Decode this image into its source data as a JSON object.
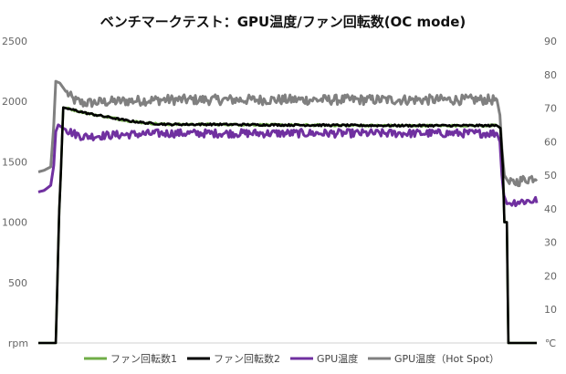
{
  "chart_data": {
    "type": "line",
    "title": "ベンチマークテスト：GPU温度/ファン回転数(OC mode)",
    "y_left": {
      "unit_label": "rpm",
      "range": [
        0,
        2500
      ],
      "ticks": [
        "2500",
        "2000",
        "1500",
        "1000",
        "500"
      ]
    },
    "y_right": {
      "unit_label": "℃",
      "range": [
        0,
        90
      ],
      "ticks": [
        "90",
        "80",
        "70",
        "60",
        "50",
        "40",
        "30",
        "20",
        "10"
      ]
    },
    "x_range": [
      0,
      100
    ],
    "grid": false,
    "legend_position": "bottom",
    "series": [
      {
        "name": "ファン回転数1",
        "axis": "left",
        "color": "#70ad47",
        "points": [
          [
            0,
            0
          ],
          [
            3.5,
            0
          ],
          [
            4.2,
            1100
          ],
          [
            4.6,
            1500
          ],
          [
            5,
            1950
          ],
          [
            7,
            1930
          ],
          [
            10,
            1900
          ],
          [
            14,
            1870
          ],
          [
            18,
            1840
          ],
          [
            22,
            1820
          ],
          [
            26,
            1810
          ],
          [
            35,
            1810
          ],
          [
            50,
            1805
          ],
          [
            70,
            1800
          ],
          [
            92,
            1800
          ],
          [
            92.7,
            1780
          ],
          [
            93.2,
            1450
          ],
          [
            93.5,
            1000
          ],
          [
            94,
            1000
          ],
          [
            94.3,
            0
          ],
          [
            100,
            0
          ]
        ]
      },
      {
        "name": "ファン回転数2",
        "axis": "left",
        "color": "#000000",
        "points": [
          [
            0,
            0
          ],
          [
            3.5,
            0
          ],
          [
            4.2,
            1100
          ],
          [
            4.6,
            1500
          ],
          [
            5,
            1950
          ],
          [
            7,
            1930
          ],
          [
            10,
            1900
          ],
          [
            14,
            1870
          ],
          [
            18,
            1840
          ],
          [
            22,
            1820
          ],
          [
            26,
            1810
          ],
          [
            35,
            1810
          ],
          [
            50,
            1805
          ],
          [
            70,
            1800
          ],
          [
            92,
            1800
          ],
          [
            92.7,
            1780
          ],
          [
            93.2,
            1450
          ],
          [
            93.5,
            1000
          ],
          [
            94,
            1000
          ],
          [
            94.3,
            0
          ],
          [
            100,
            0
          ]
        ]
      },
      {
        "name": "GPU温度",
        "axis": "right",
        "color": "#7030a0",
        "points": [
          [
            0,
            45
          ],
          [
            1.2,
            45.5
          ],
          [
            2.5,
            47
          ],
          [
            3.1,
            53
          ],
          [
            3.5,
            63
          ],
          [
            4,
            65
          ],
          [
            5,
            64
          ],
          [
            7,
            62.5
          ],
          [
            9,
            61.5
          ],
          [
            15,
            62
          ],
          [
            25,
            62.5
          ],
          [
            40,
            62.5
          ],
          [
            60,
            62.5
          ],
          [
            80,
            62.5
          ],
          [
            92,
            62.5
          ],
          [
            92.6,
            60
          ],
          [
            93,
            50
          ],
          [
            93.4,
            44
          ],
          [
            94,
            41.5
          ],
          [
            95.5,
            42
          ],
          [
            97,
            42.2
          ],
          [
            100,
            42.5
          ]
        ]
      },
      {
        "name": "GPU温度（Hot Spot）",
        "axis": "right",
        "color": "#808080",
        "points": [
          [
            0,
            51
          ],
          [
            1.2,
            51.5
          ],
          [
            2.5,
            52.5
          ],
          [
            3.1,
            65
          ],
          [
            3.5,
            78
          ],
          [
            4.3,
            77.5
          ],
          [
            5.5,
            75
          ],
          [
            7,
            72.5
          ],
          [
            9,
            71.5
          ],
          [
            15,
            72
          ],
          [
            25,
            72.5
          ],
          [
            40,
            72.5
          ],
          [
            60,
            72.5
          ],
          [
            80,
            72.5
          ],
          [
            92,
            72.5
          ],
          [
            92.6,
            68
          ],
          [
            93,
            58
          ],
          [
            93.5,
            50
          ],
          [
            94.5,
            47.5
          ],
          [
            97,
            48.5
          ],
          [
            100,
            49.5
          ]
        ]
      }
    ]
  }
}
